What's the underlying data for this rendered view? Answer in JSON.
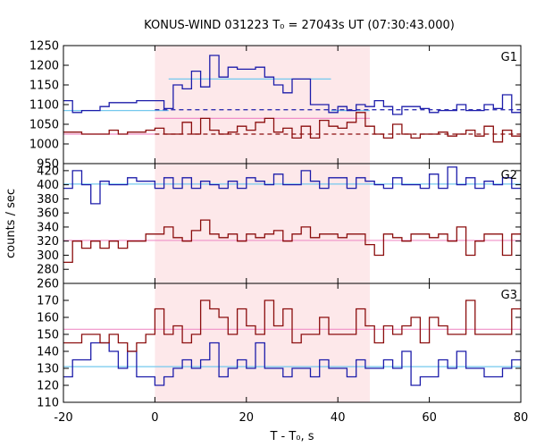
{
  "chart_data": {
    "type": "line",
    "title": "KONUS-WIND 031223 T₀ = 27043s UT (07:30:43.000)",
    "xlabel": "T - T₀, s",
    "ylabel": "counts / sec",
    "xlim": [
      -20,
      80
    ],
    "x_ticks": [
      -20,
      0,
      20,
      40,
      60,
      80
    ],
    "bin_edges": [
      -20,
      -18,
      -16,
      -14,
      -12,
      -10,
      -8,
      -6,
      -4,
      -2,
      0,
      2,
      4,
      6,
      8,
      10,
      12,
      14,
      16,
      18,
      20,
      22,
      24,
      26,
      28,
      30,
      32,
      34,
      36,
      38,
      40,
      42,
      44,
      46,
      48,
      50,
      52,
      54,
      56,
      58,
      60,
      62,
      64,
      66,
      68,
      70,
      72,
      74,
      76,
      78,
      80
    ],
    "shaded_interval": [
      0,
      47
    ],
    "colors": {
      "blue": "#1c1caa",
      "red": "#8b0d0d",
      "lightblue": "#74c8ee",
      "pink": "#f090c8",
      "shade": "#fde8ea"
    },
    "panels": [
      {
        "label": "G1",
        "ylim": [
          950,
          1250
        ],
        "y_ticks": [
          950,
          1000,
          1050,
          1100,
          1150,
          1200,
          1250
        ],
        "series": [
          {
            "color": "blue",
            "values": [
              1110,
              1080,
              1085,
              1085,
              1095,
              1105,
              1105,
              1105,
              1110,
              1110,
              1110,
              1090,
              1150,
              1140,
              1185,
              1145,
              1225,
              1170,
              1195,
              1190,
              1190,
              1195,
              1170,
              1150,
              1130,
              1165,
              1165,
              1100,
              1100,
              1080,
              1095,
              1085,
              1100,
              1095,
              1110,
              1095,
              1075,
              1095,
              1095,
              1090,
              1080,
              1085,
              1085,
              1100,
              1085,
              1085,
              1100,
              1090,
              1125,
              1080
            ]
          },
          {
            "color": "red",
            "values": [
              1030,
              1030,
              1025,
              1025,
              1025,
              1035,
              1025,
              1030,
              1030,
              1035,
              1040,
              1025,
              1025,
              1055,
              1025,
              1065,
              1035,
              1025,
              1030,
              1045,
              1035,
              1055,
              1065,
              1030,
              1040,
              1015,
              1045,
              1015,
              1060,
              1045,
              1040,
              1055,
              1080,
              1045,
              1025,
              1015,
              1050,
              1025,
              1015,
              1025,
              1025,
              1030,
              1020,
              1025,
              1035,
              1020,
              1045,
              1005,
              1035,
              1020
            ]
          }
        ],
        "level_lines": [
          {
            "color": "lightblue",
            "style": "solid",
            "x": [
              -20,
              3
            ],
            "y": 1085
          },
          {
            "color": "lightblue",
            "style": "solid",
            "x": [
              3,
              38.5
            ],
            "y": 1165
          },
          {
            "color": "lightblue",
            "style": "solid",
            "x": [
              38.5,
              47
            ],
            "y": 1085
          },
          {
            "color": "blue",
            "style": "dashed",
            "x": [
              0,
              80
            ],
            "y": 1087
          },
          {
            "color": "pink",
            "style": "solid",
            "x": [
              -20,
              0
            ],
            "y": 1025
          },
          {
            "color": "pink",
            "style": "solid",
            "x": [
              0,
              47
            ],
            "y": 1065
          },
          {
            "color": "red",
            "style": "dashed",
            "x": [
              0,
              80
            ],
            "y": 1025
          }
        ]
      },
      {
        "label": "G2",
        "ylim": [
          260,
          430
        ],
        "y_ticks": [
          260,
          280,
          300,
          320,
          340,
          360,
          380,
          400,
          420
        ],
        "series": [
          {
            "color": "blue",
            "values": [
              395,
              420,
              400,
              373,
              405,
              400,
              400,
              410,
              405,
              405,
              395,
              410,
              395,
              410,
              395,
              405,
              400,
              395,
              405,
              395,
              410,
              405,
              400,
              415,
              400,
              400,
              420,
              405,
              395,
              410,
              410,
              395,
              410,
              405,
              400,
              395,
              410,
              400,
              400,
              395,
              415,
              395,
              425,
              400,
              410,
              395,
              405,
              400,
              410,
              395
            ]
          },
          {
            "color": "red",
            "values": [
              290,
              320,
              310,
              320,
              310,
              320,
              310,
              320,
              320,
              330,
              330,
              340,
              325,
              320,
              335,
              350,
              330,
              325,
              330,
              320,
              330,
              325,
              330,
              335,
              320,
              330,
              340,
              325,
              330,
              330,
              325,
              330,
              330,
              315,
              300,
              330,
              325,
              320,
              330,
              330,
              325,
              330,
              320,
              340,
              300,
              320,
              330,
              330,
              300,
              330
            ]
          }
        ],
        "level_lines": [
          {
            "color": "lightblue",
            "style": "solid",
            "x": [
              -20,
              80
            ],
            "y": 401
          },
          {
            "color": "pink",
            "style": "solid",
            "x": [
              -20,
              80
            ],
            "y": 321
          }
        ]
      },
      {
        "label": "G3",
        "ylim": [
          110,
          180
        ],
        "y_ticks": [
          110,
          120,
          130,
          140,
          150,
          160,
          170
        ],
        "series": [
          {
            "color": "blue",
            "values": [
              125,
              135,
              135,
              145,
              145,
              140,
              130,
              140,
              125,
              125,
              120,
              125,
              130,
              135,
              130,
              135,
              145,
              125,
              130,
              135,
              130,
              145,
              130,
              130,
              125,
              130,
              130,
              125,
              135,
              130,
              130,
              125,
              135,
              130,
              130,
              135,
              130,
              140,
              120,
              125,
              125,
              135,
              130,
              140,
              130,
              130,
              125,
              125,
              130,
              135
            ]
          },
          {
            "color": "red",
            "values": [
              145,
              145,
              150,
              150,
              145,
              150,
              145,
              140,
              145,
              150,
              165,
              150,
              155,
              145,
              150,
              170,
              165,
              160,
              150,
              165,
              155,
              150,
              170,
              155,
              165,
              145,
              150,
              150,
              160,
              150,
              150,
              150,
              165,
              155,
              145,
              155,
              150,
              155,
              160,
              145,
              160,
              155,
              150,
              150,
              170,
              150,
              150,
              150,
              150,
              165
            ]
          }
        ],
        "level_lines": [
          {
            "color": "lightblue",
            "style": "solid",
            "x": [
              -20,
              80
            ],
            "y": 131
          },
          {
            "color": "pink",
            "style": "solid",
            "x": [
              -20,
              80
            ],
            "y": 153
          }
        ]
      }
    ]
  }
}
